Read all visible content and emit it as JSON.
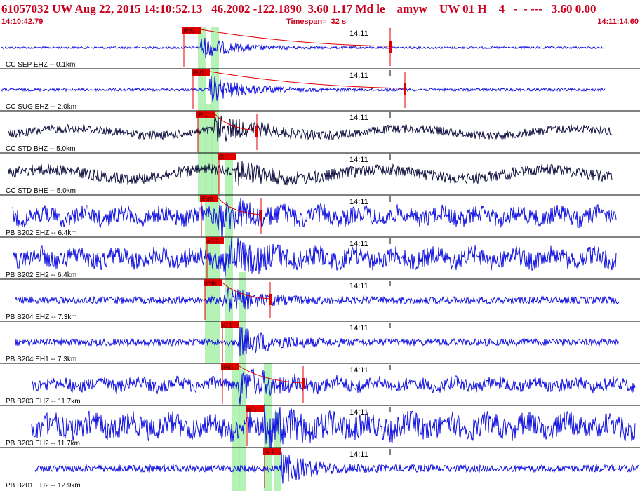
{
  "header": {
    "line1": "61057032 UW Aug 22, 2015 14:10:52.13   46.2002 -122.1890  3.60 1.17 Md le    amyw    UW 01 H    4   -  - ---   3.60 0.00",
    "start_time": "14:10:42.79",
    "timespan": "Timespan=  32 s",
    "end_time": "14:11:14.60"
  },
  "minute_mark": "14:11",
  "colors": {
    "header_text": "#c8001e",
    "trace_blue": "#1010e0",
    "trace_navy": "#101040",
    "pick": "#e00000",
    "highlight": "#a8f0a8",
    "divider": "#000000"
  },
  "traces": [
    {
      "label": "CC SEP EHZ -- 0.1km",
      "pick": "iPd1",
      "color": "blue",
      "start": 2,
      "end": 860,
      "amp": 1.5,
      "burst_at": 285,
      "burst_amp": 16,
      "has_s_marker": true,
      "s_marker_at": 556
    },
    {
      "label": "CC SUG EHZ -- 2.0km",
      "pick": "iPd1",
      "color": "blue",
      "start": 2,
      "end": 862,
      "amp": 2,
      "burst_at": 298,
      "burst_amp": 20,
      "has_s_marker": true,
      "s_marker_at": 577
    },
    {
      "label": "CC STD BHZ -- 5.0km",
      "pick": "iP 1",
      "color": "navy",
      "start": 12,
      "end": 872,
      "amp": 6,
      "burst_at": 305,
      "burst_amp": 18,
      "has_s_marker": true,
      "s_marker_at": 366
    },
    {
      "label": "CC STD BHE -- 5.0km",
      "pick": "iS 1",
      "color": "navy",
      "start": 12,
      "end": 872,
      "amp": 8,
      "burst_at": 335,
      "burst_amp": 14,
      "has_s_marker": false,
      "s_marker_at": 0
    },
    {
      "label": "PB B202 EHZ -- 6.4km",
      "pick": "iPd0",
      "color": "blue",
      "start": 18,
      "end": 878,
      "amp": 12,
      "burst_at": 310,
      "burst_amp": 20,
      "has_s_marker": true,
      "s_marker_at": 372
    },
    {
      "label": "PB B202 EH2 -- 6.4km",
      "pick": "eS 2",
      "color": "blue",
      "start": 18,
      "end": 878,
      "amp": 13,
      "burst_at": 318,
      "burst_amp": 20,
      "has_s_marker": false,
      "s_marker_at": 0
    },
    {
      "label": "PB B204 EHZ -- 7.3km",
      "pick": "iPd0",
      "color": "blue",
      "start": 22,
      "end": 882,
      "amp": 5,
      "burst_at": 315,
      "burst_amp": 18,
      "has_s_marker": true,
      "s_marker_at": 385
    },
    {
      "label": "PB B204 EH1 -- 7.3km",
      "pick": "iS 1",
      "color": "blue",
      "start": 22,
      "end": 882,
      "amp": 5,
      "burst_at": 340,
      "burst_amp": 20,
      "has_s_marker": false,
      "s_marker_at": 0
    },
    {
      "label": "PB B203 EHZ -- 11.7km",
      "pick": "iPd1",
      "color": "blue",
      "start": 45,
      "end": 905,
      "amp": 9,
      "burst_at": 340,
      "burst_amp": 20,
      "has_s_marker": true,
      "s_marker_at": 432
    },
    {
      "label": "PB B203 EH2 -- 11.7km",
      "pick": "iS 1",
      "color": "blue",
      "start": 45,
      "end": 905,
      "amp": 16,
      "burst_at": 375,
      "burst_amp": 22,
      "has_s_marker": false,
      "s_marker_at": 0
    },
    {
      "label": "PB B201 EH2 -- 12.9km",
      "pick": "iS 1",
      "color": "blue",
      "start": 50,
      "end": 910,
      "amp": 5,
      "burst_at": 400,
      "burst_amp": 20,
      "has_s_marker": false,
      "s_marker_at": 0
    }
  ]
}
